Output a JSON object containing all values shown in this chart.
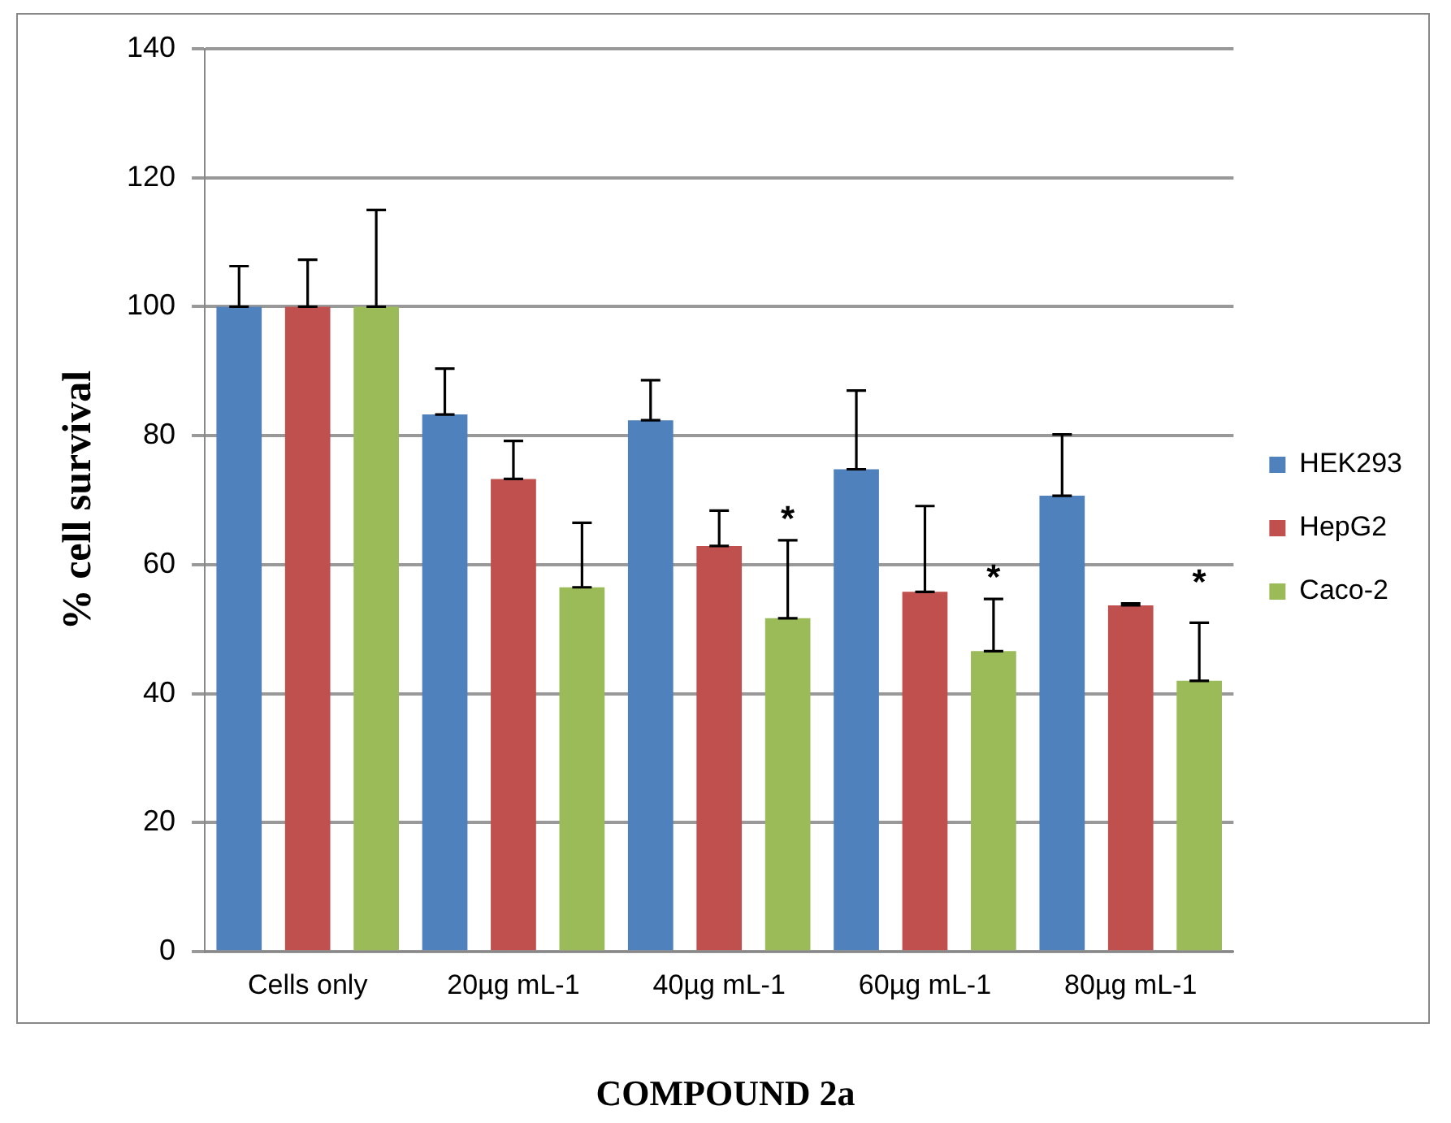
{
  "chart_data": {
    "type": "bar",
    "xlabel": "COMPOUND 2a",
    "ylabel": "% cell survival",
    "categories": [
      "Cells only",
      "20µg mL-1",
      "40µg mL-1",
      "60µg mL-1",
      "80µg mL-1"
    ],
    "series": [
      {
        "name": "HEK293",
        "color": "#4f81bd",
        "values": [
          100,
          83.3,
          82.4,
          74.8,
          70.7
        ],
        "errors": [
          [
            100,
            106.3
          ],
          [
            83.3,
            90.4
          ],
          [
            82.4,
            88.6
          ],
          [
            74.8,
            87.0
          ],
          [
            70.7,
            80.2
          ]
        ]
      },
      {
        "name": "HepG2",
        "color": "#c0504d",
        "values": [
          100,
          73.3,
          62.9,
          55.8,
          53.7
        ],
        "errors": [
          [
            100,
            107.3
          ],
          [
            73.3,
            79.2
          ],
          [
            62.9,
            68.4
          ],
          [
            55.8,
            69.1
          ],
          [
            53.7,
            54.0
          ]
        ]
      },
      {
        "name": "Caco-2",
        "color": "#9bbb59",
        "values": [
          100,
          56.5,
          51.7,
          46.6,
          42.0
        ],
        "errors": [
          [
            100,
            115.0
          ],
          [
            56.5,
            66.5
          ],
          [
            51.7,
            63.8
          ],
          [
            46.6,
            54.7
          ],
          [
            42.0,
            51.0
          ]
        ]
      }
    ],
    "annotations": [
      {
        "text": "*",
        "x": "40µg mL-1",
        "y": 63.8
      },
      {
        "text": "*",
        "x": "60µg mL-1",
        "y": 54.7
      },
      {
        "text": "*",
        "x": "80µg mL-1",
        "y": 54.0
      }
    ],
    "ylim": [
      0,
      140
    ],
    "yticks": [
      0,
      20,
      40,
      60,
      80,
      100,
      120,
      140
    ],
    "grid": "y",
    "legend": "right"
  }
}
